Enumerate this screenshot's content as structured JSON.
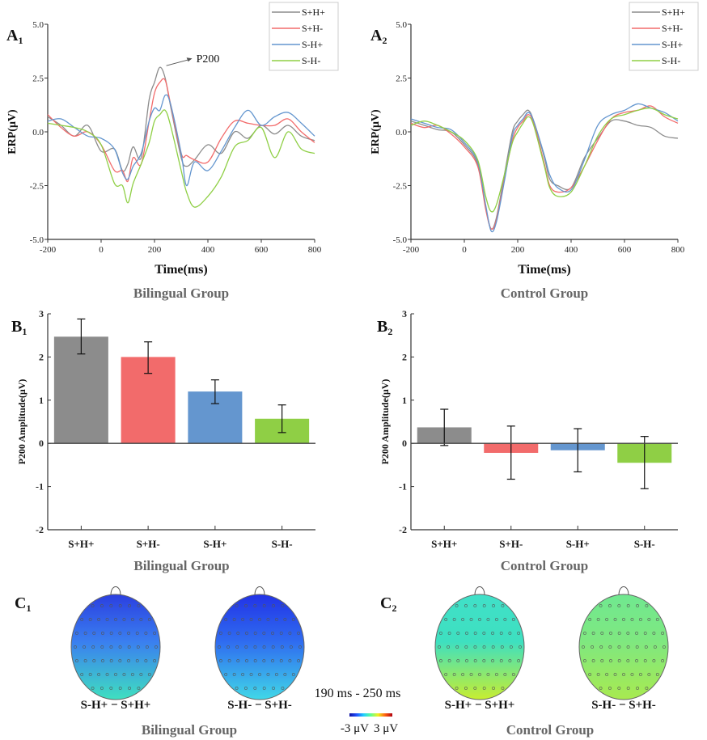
{
  "colors": {
    "S+H+": "#8c8c8c",
    "S+H-": "#f26b6b",
    "S-H+": "#6496cf",
    "S-H-": "#8fcf45"
  },
  "chart_data": [
    {
      "id": "A1",
      "panel": {
        "letter": "A",
        "sub": "1"
      },
      "type": "line",
      "xlabel": "Time(ms)",
      "ylabel": "ERP(μV)",
      "group_label": "Bilingual Group",
      "xlim": [
        -200,
        800
      ],
      "ylim": [
        -5.0,
        5.0
      ],
      "xticks": [
        "-200",
        "0",
        "200",
        "400",
        "600",
        "800"
      ],
      "yticks": [
        "-5.0",
        "-2.5",
        "0.0",
        "2.5",
        "5.0"
      ],
      "legend": "top-right",
      "grid": false,
      "annotation": {
        "text": "P200",
        "x": 220,
        "y": 3.0
      },
      "x": [
        -200,
        -150,
        -100,
        -50,
        0,
        50,
        80,
        100,
        120,
        150,
        180,
        200,
        220,
        240,
        260,
        300,
        320,
        350,
        400,
        450,
        500,
        550,
        600,
        650,
        700,
        750,
        800
      ],
      "series": [
        {
          "name": "S+H+",
          "values": [
            0.7,
            0.3,
            -0.2,
            0.3,
            -0.9,
            -0.8,
            -1.8,
            -1.5,
            -0.7,
            -1.2,
            1.5,
            2.3,
            3.0,
            2.5,
            1.2,
            -1.2,
            -1.6,
            -1.3,
            -0.6,
            -1.0,
            0.0,
            -0.3,
            0.3,
            -0.1,
            0.3,
            -0.2,
            -0.4
          ]
        },
        {
          "name": "S+H-",
          "values": [
            0.8,
            0.2,
            -0.2,
            0.0,
            -0.6,
            -1.8,
            -1.8,
            -2.3,
            -1.2,
            -1.5,
            0.5,
            1.8,
            2.3,
            2.4,
            1.3,
            -1.0,
            -1.1,
            -1.3,
            -1.4,
            -0.3,
            0.5,
            0.4,
            0.3,
            0.3,
            0.6,
            0.0,
            -0.5
          ]
        },
        {
          "name": "S-H+",
          "values": [
            0.5,
            0.6,
            0.2,
            -0.2,
            -0.3,
            -0.8,
            -1.9,
            -2.2,
            -1.6,
            -1.0,
            0.5,
            1.1,
            1.0,
            1.7,
            1.3,
            -1.0,
            -2.5,
            -1.4,
            -1.8,
            -0.9,
            0.2,
            1.0,
            0.3,
            0.7,
            0.9,
            0.4,
            -0.2
          ]
        },
        {
          "name": "S-H-",
          "values": [
            0.4,
            0.3,
            0.2,
            0.0,
            -0.6,
            -2.4,
            -2.5,
            -3.3,
            -2.4,
            -1.5,
            -0.5,
            0.5,
            0.8,
            1.0,
            0.3,
            -1.8,
            -2.8,
            -3.5,
            -3.0,
            -2.1,
            -0.7,
            -0.4,
            0.2,
            -1.2,
            0.0,
            -0.8,
            -1.0
          ]
        }
      ]
    },
    {
      "id": "A2",
      "panel": {
        "letter": "A",
        "sub": "2"
      },
      "type": "line",
      "xlabel": "Time(ms)",
      "ylabel": "ERP(μV)",
      "group_label": "Control Group",
      "xlim": [
        -200,
        800
      ],
      "ylim": [
        -5.0,
        5.0
      ],
      "xticks": [
        "-200",
        "0",
        "200",
        "400",
        "600",
        "800"
      ],
      "yticks": [
        "-5.0",
        "-2.5",
        "0.0",
        "2.5",
        "5.0"
      ],
      "legend": "top-right",
      "grid": false,
      "x": [
        -200,
        -150,
        -100,
        -50,
        0,
        50,
        80,
        100,
        120,
        150,
        180,
        200,
        220,
        240,
        260,
        300,
        320,
        350,
        400,
        450,
        500,
        550,
        600,
        650,
        700,
        750,
        800
      ],
      "series": [
        {
          "name": "S+H+",
          "values": [
            0.5,
            0.3,
            0.1,
            0.0,
            -0.6,
            -1.5,
            -3.5,
            -4.5,
            -4.0,
            -2.0,
            0.0,
            0.5,
            0.8,
            1.0,
            0.5,
            -1.2,
            -2.2,
            -2.5,
            -2.6,
            -1.2,
            -0.3,
            0.5,
            0.5,
            0.3,
            0.2,
            -0.2,
            -0.3
          ]
        },
        {
          "name": "S+H-",
          "values": [
            0.4,
            0.2,
            0.3,
            -0.1,
            -0.7,
            -1.6,
            -3.6,
            -4.5,
            -4.1,
            -2.2,
            -0.4,
            0.2,
            0.5,
            0.8,
            0.4,
            -1.5,
            -2.5,
            -2.8,
            -2.6,
            -1.6,
            -0.4,
            0.6,
            0.9,
            1.0,
            1.2,
            0.7,
            0.4
          ]
        },
        {
          "name": "S-H+",
          "values": [
            0.6,
            0.4,
            0.2,
            0.1,
            -0.5,
            -1.4,
            -3.4,
            -4.6,
            -4.2,
            -2.3,
            -0.2,
            0.3,
            0.6,
            0.9,
            0.5,
            -1.1,
            -2.0,
            -2.6,
            -2.7,
            -1.3,
            0.3,
            0.8,
            1.0,
            1.3,
            1.1,
            0.9,
            0.5
          ]
        },
        {
          "name": "S-H-",
          "values": [
            0.3,
            0.5,
            0.3,
            0.0,
            -0.4,
            -1.3,
            -3.0,
            -3.7,
            -3.4,
            -2.0,
            -0.5,
            0.0,
            0.4,
            0.7,
            0.3,
            -1.6,
            -2.6,
            -3.0,
            -2.8,
            -1.6,
            -0.2,
            0.6,
            0.8,
            1.0,
            1.1,
            0.8,
            0.6
          ]
        }
      ]
    },
    {
      "id": "B1",
      "panel": {
        "letter": "B",
        "sub": "1"
      },
      "type": "bar",
      "ylabel": "P200 Amplitude(μV)",
      "group_label": "Bilingual Group",
      "ylim": [
        -2,
        3
      ],
      "yticks": [
        "-2",
        "-1",
        "0",
        "1",
        "2",
        "3"
      ],
      "categories": [
        "S+H+",
        "S+H-",
        "S-H+",
        "S-H-"
      ],
      "values": [
        2.47,
        2.0,
        1.2,
        0.57
      ],
      "error_low": [
        2.07,
        1.62,
        0.92,
        0.25
      ],
      "error_high": [
        2.88,
        2.35,
        1.47,
        0.89
      ]
    },
    {
      "id": "B2",
      "panel": {
        "letter": "B",
        "sub": "2"
      },
      "type": "bar",
      "ylabel": "P200 Amplitude(μV)",
      "group_label": "Control Group",
      "ylim": [
        -2,
        3
      ],
      "yticks": [
        "-2",
        "-1",
        "0",
        "1",
        "2",
        "3"
      ],
      "categories": [
        "S+H+",
        "S+H-",
        "S-H+",
        "S-H-"
      ],
      "values": [
        0.37,
        -0.22,
        -0.16,
        -0.45
      ],
      "error_low": [
        -0.05,
        -0.83,
        -0.66,
        -1.05
      ],
      "error_high": [
        0.79,
        0.4,
        0.34,
        0.16
      ]
    },
    {
      "id": "C",
      "type": "heatmap",
      "time_window": "190 ms - 250 ms",
      "colorbar": {
        "min_label": "-3 μV",
        "max_label": "3 μV",
        "range": [
          -3,
          3
        ],
        "colormap": "jet"
      },
      "groups": [
        {
          "panel": {
            "letter": "C",
            "sub": "1"
          },
          "group_label": "Bilingual Group",
          "maps": [
            {
              "label": "S-H+ − S+H+",
              "dominant": "#3a7ff0",
              "frontal": "#2b3fe0",
              "posterior": "#3fe0c0"
            },
            {
              "label": "S-H- − S+H-",
              "dominant": "#2f6cf0",
              "frontal": "#2233e6",
              "posterior": "#40d8e8"
            }
          ]
        },
        {
          "panel": {
            "letter": "C",
            "sub": "2"
          },
          "group_label": "Control Group",
          "maps": [
            {
              "label": "S-H+ − S+H+",
              "dominant": "#3ee0c0",
              "frontal": "#40e0c8",
              "posterior": "#c8ee30"
            },
            {
              "label": "S-H- − S+H-",
              "dominant": "#7fe880",
              "frontal": "#70e890",
              "posterior": "#a8ea50"
            }
          ]
        }
      ]
    }
  ]
}
